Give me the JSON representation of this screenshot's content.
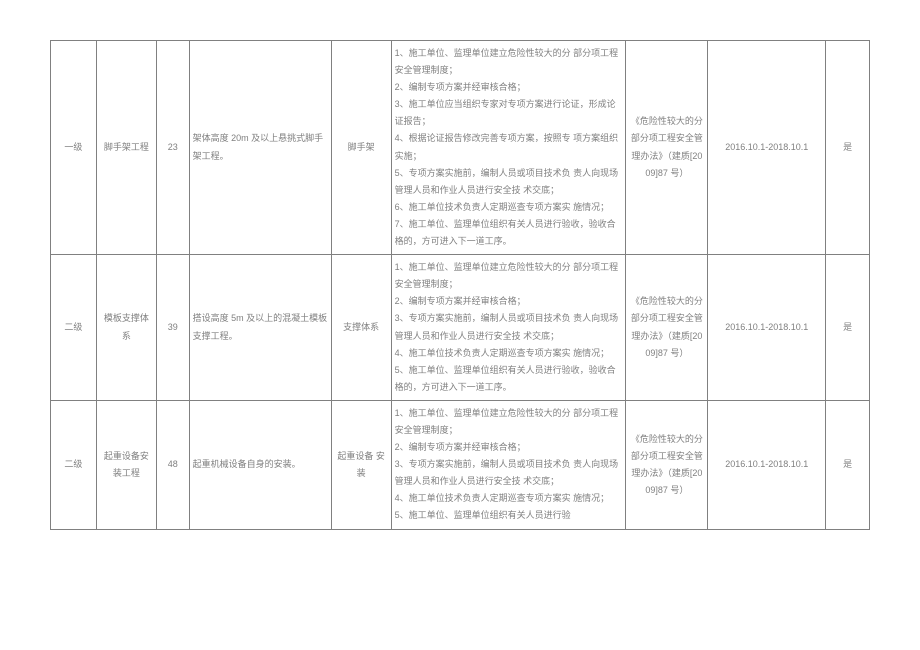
{
  "rows": [
    {
      "level": "一级",
      "category": "脚手架工程",
      "num": "23",
      "desc": "架体高度 20m 及以上悬挑式脚手架工程。",
      "type": "脚手架",
      "measures": "1、施工单位、监理单位建立危险性较大的分 部分项工程安全管理制度；\n2、编制专项方案并经审核合格；\n3、施工单位应当组织专家对专项方案进行论证，形成论证报告；\n4、根据论证报告修改完善专项方案，按照专 项方案组织实施；\n5、专项方案实施前，编制人员或项目技术负 责人向现场管理人员和作业人员进行安全技 术交底；\n6、施工单位技术负责人定期巡查专项方案实 施情况；\n7、施工单位、监理单位组织有关人员进行验收，验收合格的，方可进入下一道工序。",
      "basis": "《危险性较大的分部分项工程安全管理办法》（建质[2009]87 号）",
      "period": "2016.10.1-2018.10.1",
      "flag": "是"
    },
    {
      "level": "二级",
      "category": "模板支撑体系",
      "num": "39",
      "desc": "搭设高度 5m 及以上的混凝土模板 支撑工程。",
      "type": "支撑体系",
      "measures": "1、施工单位、监理单位建立危险性较大的分 部分项工程安全管理制度；\n2、编制专项方案并经审核合格；\n3、专项方案实施前，编制人员或项目技术负 责人向现场管理人员和作业人员进行安全技 术交底；\n4、施工单位技术负责人定期巡查专项方案实 施情况；\n5、施工单位、监理单位组织有关人员进行验收，验收合格的，方可进入下一道工序。",
      "basis": "《危险性较大的分部分项工程安全管理办法》（建质[2009]87 号）",
      "period": "2016.10.1-2018.10.1",
      "flag": "是"
    },
    {
      "level": "二级",
      "category": "起重设备安装工程",
      "num": "48",
      "desc": "起重机械设备自身的安装。",
      "type": "起重设备 安装",
      "measures": "1、施工单位、监理单位建立危险性较大的分 部分项工程安全管理制度；\n2、编制专项方案并经审核合格；\n3、专项方案实施前，编制人员或项目技术负 责人向现场管理人员和作业人员进行安全技 术交底；\n4、施工单位技术负责人定期巡查专项方案实 施情况；\n5、施工单位、监理单位组织有关人员进行验",
      "basis": "《危险性较大的分部分项工程安全管理办法》（建质[2009]87 号）",
      "period": "2016.10.1-2018.10.1",
      "flag": "是"
    }
  ]
}
